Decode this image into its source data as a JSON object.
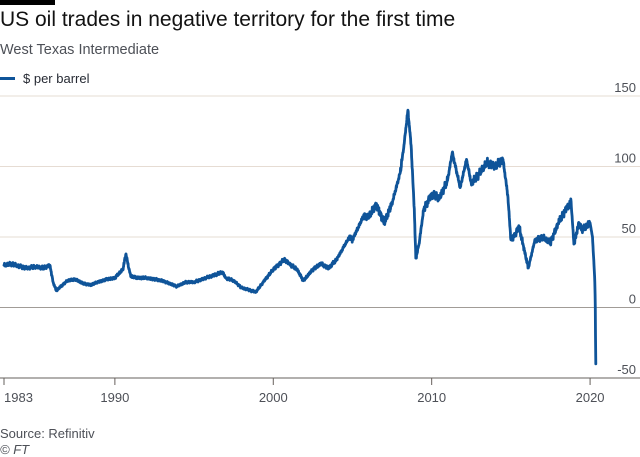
{
  "header": {
    "title": "US oil trades in negative territory for the first time",
    "subtitle": "West Texas Intermediate"
  },
  "footer": {
    "source": "Source: Refinitiv",
    "credit": "© FT"
  },
  "colors": {
    "line": "#0f5499",
    "grid": "#e6dcd3",
    "zero": "#a19c97",
    "axis": "#66605c"
  },
  "chart_data": {
    "type": "line",
    "title": "US oil trades in negative territory for the first time",
    "subtitle": "West Texas Intermediate",
    "xlabel": "",
    "ylabel": "",
    "xlim": [
      1983.0,
      2020.5
    ],
    "ylim": [
      -50,
      150
    ],
    "x_ticks": [
      1983,
      1990,
      2000,
      2010,
      2020
    ],
    "x_tick_labels": [
      "1983",
      "1990",
      "2000",
      "2010",
      "2020"
    ],
    "y_ticks": [
      -50,
      0,
      50,
      100,
      150
    ],
    "y_tick_labels": [
      "-50",
      "0",
      "50",
      "100",
      "150"
    ],
    "y_axis_side": "right",
    "grid": "horizontal",
    "legend": "top-left",
    "series": [
      {
        "name": "$ per barrel",
        "x": [
          1983.0,
          1983.5,
          1984.0,
          1984.5,
          1985.0,
          1985.5,
          1985.9,
          1986.1,
          1986.3,
          1986.6,
          1987.0,
          1987.5,
          1988.0,
          1988.5,
          1988.9,
          1989.5,
          1990.0,
          1990.5,
          1990.7,
          1990.8,
          1991.0,
          1991.5,
          1992.0,
          1993.0,
          1993.9,
          1994.5,
          1995.0,
          1996.0,
          1996.8,
          1997.0,
          1997.5,
          1998.0,
          1998.9,
          1999.5,
          2000.0,
          2000.7,
          2001.0,
          2001.5,
          2001.9,
          2002.5,
          2003.0,
          2003.5,
          2004.0,
          2004.8,
          2005.0,
          2005.7,
          2006.0,
          2006.5,
          2007.0,
          2007.5,
          2008.0,
          2008.2,
          2008.5,
          2008.7,
          2008.9,
          2009.0,
          2009.2,
          2009.5,
          2010.0,
          2010.5,
          2011.0,
          2011.3,
          2011.8,
          2012.2,
          2012.5,
          2013.0,
          2013.5,
          2014.0,
          2014.5,
          2014.8,
          2015.0,
          2015.3,
          2015.5,
          2015.8,
          2016.1,
          2016.5,
          2017.0,
          2017.5,
          2018.0,
          2018.5,
          2018.8,
          2018.98,
          2019.3,
          2019.5,
          2020.0,
          2020.15,
          2020.25,
          2020.3,
          2020.33,
          2020.36
        ],
        "y": [
          30,
          31,
          29,
          28,
          29,
          28,
          30,
          18,
          12,
          15,
          19,
          20,
          17,
          16,
          18,
          20,
          21,
          27,
          38,
          32,
          22,
          21,
          21,
          19,
          15,
          18,
          18,
          22,
          25,
          21,
          19,
          14,
          11,
          20,
          27,
          34,
          31,
          27,
          19,
          27,
          31,
          28,
          34,
          50,
          48,
          65,
          64,
          73,
          60,
          74,
          95,
          110,
          140,
          115,
          70,
          35,
          45,
          70,
          80,
          78,
          90,
          110,
          85,
          105,
          88,
          95,
          103,
          100,
          105,
          80,
          48,
          52,
          58,
          43,
          28,
          47,
          50,
          46,
          60,
          70,
          75,
          45,
          60,
          55,
          60,
          50,
          30,
          18,
          0,
          -40
        ]
      }
    ]
  }
}
